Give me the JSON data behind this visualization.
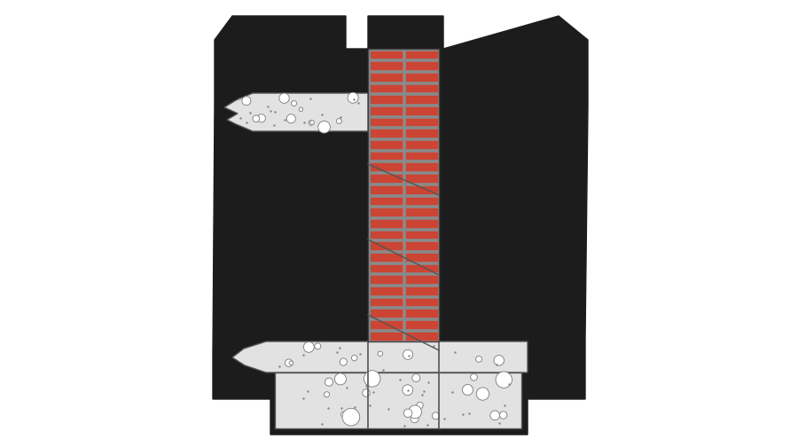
{
  "bg_color": "#ffffff",
  "black_color": "#1c1c1c",
  "brick_color": "#cc4433",
  "mortar_color": "#8a8a8a",
  "concrete_color": "#e2e2e2",
  "concrete_border": "#555555",
  "crack_color": "#333333",
  "fig_w": 9.0,
  "fig_h": 5.04,
  "dpi": 100
}
